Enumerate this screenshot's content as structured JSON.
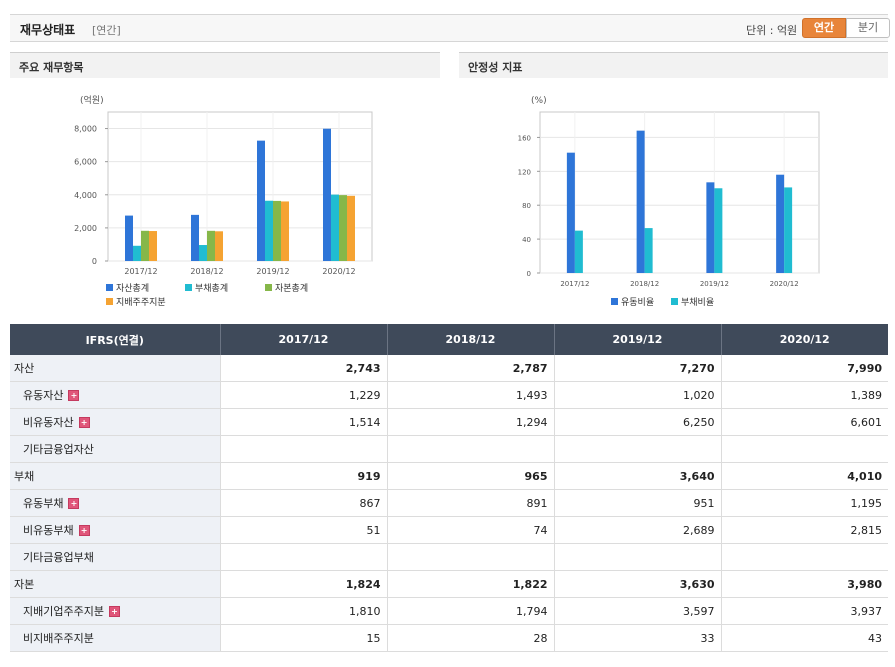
{
  "header": {
    "title": "재무상태표",
    "subtitle": "[연간]",
    "unit_label": "단위 : 억원",
    "toggle_annual": "연간",
    "toggle_quarter": "분기"
  },
  "colors": {
    "accent": "#e8853a",
    "header_bg": "#3f4a5a",
    "series_blue": "#2e75d8",
    "series_cyan": "#20bcd1",
    "series_green": "#86b749",
    "series_orange": "#f5a332"
  },
  "left_panel": {
    "title": "주요 재무항목"
  },
  "right_panel": {
    "title": "안정성 지표"
  },
  "chart_data": [
    {
      "type": "bar",
      "title": "주요 재무항목",
      "ylabel": "(억원)",
      "categories": [
        "2017/12",
        "2018/12",
        "2019/12",
        "2020/12"
      ],
      "ylim": [
        0,
        9000
      ],
      "yticks": [
        0,
        2000,
        4000,
        6000,
        8000
      ],
      "ytick_labels": [
        "0",
        "2,000",
        "4,000",
        "6,000",
        "8,000"
      ],
      "grid": true,
      "legend": "bottom",
      "series": [
        {
          "name": "자산총계",
          "color": "#2e75d8",
          "values": [
            2743,
            2787,
            7270,
            7990
          ]
        },
        {
          "name": "부채총계",
          "color": "#20bcd1",
          "values": [
            919,
            965,
            3640,
            4010
          ]
        },
        {
          "name": "자본총계",
          "color": "#86b749",
          "values": [
            1824,
            1822,
            3630,
            3980
          ]
        },
        {
          "name": "지배주주지분",
          "color": "#f5a332",
          "values": [
            1810,
            1794,
            3597,
            3937
          ]
        }
      ]
    },
    {
      "type": "bar",
      "title": "안정성 지표",
      "ylabel": "(%)",
      "categories": [
        "2017/12",
        "2018/12",
        "2019/12",
        "2020/12"
      ],
      "ylim": [
        0,
        190
      ],
      "yticks": [
        0,
        40,
        80,
        120,
        160
      ],
      "ytick_labels": [
        "0",
        "40",
        "80",
        "120",
        "160"
      ],
      "grid": true,
      "legend": "bottom",
      "series": [
        {
          "name": "유동비율",
          "color": "#2e75d8",
          "values": [
            142,
            168,
            107,
            116
          ]
        },
        {
          "name": "부채비율",
          "color": "#20bcd1",
          "values": [
            50,
            53,
            100,
            101
          ]
        }
      ]
    }
  ],
  "table": {
    "header_label": "IFRS(연결)",
    "columns": [
      "2017/12",
      "2018/12",
      "2019/12",
      "2020/12"
    ],
    "rows": [
      {
        "label": "자산",
        "main": true,
        "expand": false,
        "values": [
          "2,743",
          "2,787",
          "7,270",
          "7,990"
        ]
      },
      {
        "label": "유동자산",
        "main": false,
        "expand": true,
        "values": [
          "1,229",
          "1,493",
          "1,020",
          "1,389"
        ]
      },
      {
        "label": "비유동자산",
        "main": false,
        "expand": true,
        "values": [
          "1,514",
          "1,294",
          "6,250",
          "6,601"
        ]
      },
      {
        "label": "기타금융업자산",
        "main": false,
        "expand": false,
        "values": [
          "",
          "",
          "",
          ""
        ]
      },
      {
        "label": "부채",
        "main": true,
        "expand": false,
        "values": [
          "919",
          "965",
          "3,640",
          "4,010"
        ]
      },
      {
        "label": "유동부채",
        "main": false,
        "expand": true,
        "values": [
          "867",
          "891",
          "951",
          "1,195"
        ]
      },
      {
        "label": "비유동부채",
        "main": false,
        "expand": true,
        "values": [
          "51",
          "74",
          "2,689",
          "2,815"
        ]
      },
      {
        "label": "기타금융업부채",
        "main": false,
        "expand": false,
        "values": [
          "",
          "",
          "",
          ""
        ]
      },
      {
        "label": "자본",
        "main": true,
        "expand": false,
        "values": [
          "1,824",
          "1,822",
          "3,630",
          "3,980"
        ]
      },
      {
        "label": "지배기업주주지분",
        "main": false,
        "expand": true,
        "values": [
          "1,810",
          "1,794",
          "3,597",
          "3,937"
        ]
      },
      {
        "label": "비지배주주지분",
        "main": false,
        "expand": false,
        "values": [
          "15",
          "28",
          "33",
          "43"
        ]
      }
    ]
  }
}
